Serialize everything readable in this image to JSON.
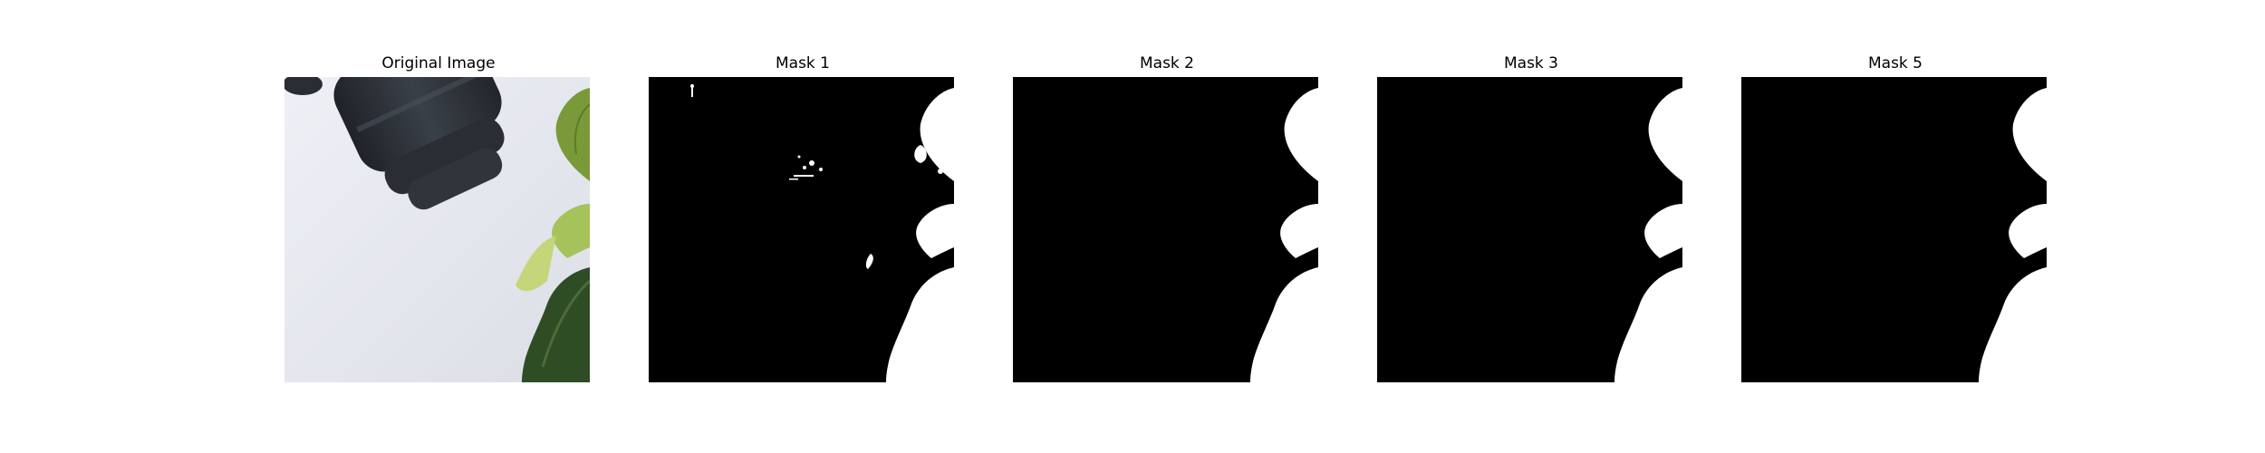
{
  "figure": {
    "panels": [
      {
        "title": "Original Image",
        "kind": "photo"
      },
      {
        "title": "Mask 1",
        "kind": "mask-noisy"
      },
      {
        "title": "Mask 2",
        "kind": "mask"
      },
      {
        "title": "Mask 3",
        "kind": "mask"
      },
      {
        "title": "Mask 5",
        "kind": "mask"
      }
    ],
    "colors": {
      "mask_bg": "#000000",
      "mask_fg": "#ffffff",
      "wall": "#e6e8ef",
      "leaf_light": "#9ab84a",
      "leaf_dark": "#2d4a22",
      "cylinder": "#2c3036"
    }
  }
}
